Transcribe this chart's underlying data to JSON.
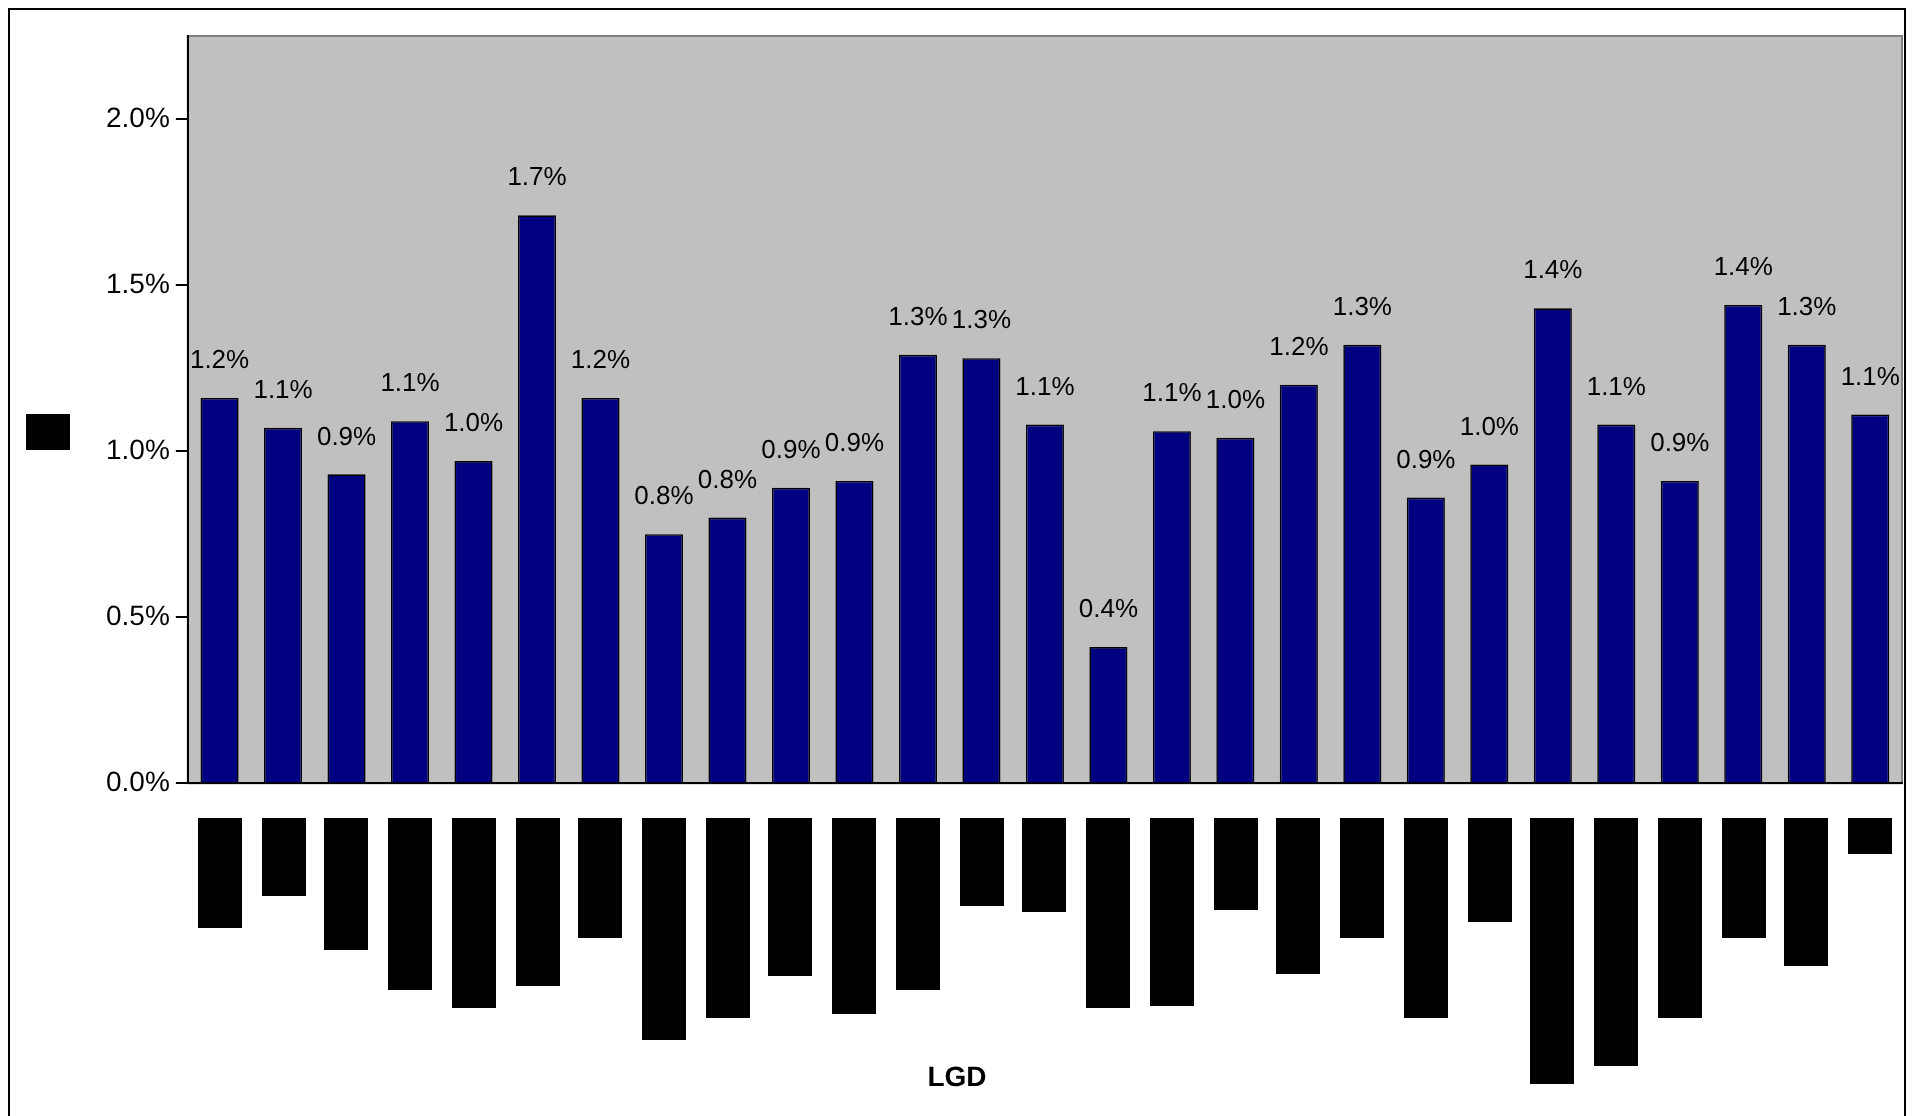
{
  "chart_data": {
    "type": "bar",
    "annotations": [
      "LGD"
    ],
    "categories": [
      null,
      null,
      null,
      null,
      null,
      null,
      null,
      null,
      null,
      null,
      null,
      null,
      null,
      null,
      null,
      null,
      null,
      null,
      null,
      null,
      null,
      null,
      null,
      null,
      null,
      null,
      null
    ],
    "values": [
      1.16,
      1.07,
      0.93,
      1.09,
      0.97,
      1.71,
      1.16,
      0.75,
      0.8,
      0.89,
      0.91,
      1.29,
      1.28,
      1.08,
      0.41,
      1.06,
      1.04,
      1.2,
      1.32,
      0.86,
      0.96,
      1.43,
      1.08,
      0.91,
      1.44,
      1.32,
      1.11
    ],
    "value_labels": [
      "1.2%",
      "1.1%",
      "0.9%",
      "1.1%",
      "1.0%",
      "1.7%",
      "1.2%",
      "0.8%",
      "0.8%",
      "0.9%",
      "0.9%",
      "1.3%",
      "1.3%",
      "1.1%",
      "0.4%",
      "1.1%",
      "1.0%",
      "1.2%",
      "1.3%",
      "0.9%",
      "1.0%",
      "1.4%",
      "1.1%",
      "0.9%",
      "1.4%",
      "1.3%",
      "1.1%"
    ],
    "color": "#000080",
    "ylim": [
      0,
      2.25
    ],
    "yticks": [
      {
        "value": 0,
        "label": "0.0%"
      },
      {
        "value": 0.5,
        "label": "0.5%"
      },
      {
        "value": 1,
        "label": "1.0%"
      },
      {
        "value": 1.5,
        "label": "1.5%"
      },
      {
        "value": 2,
        "label": "2.0%"
      }
    ],
    "grid": false,
    "legend": false
  }
}
